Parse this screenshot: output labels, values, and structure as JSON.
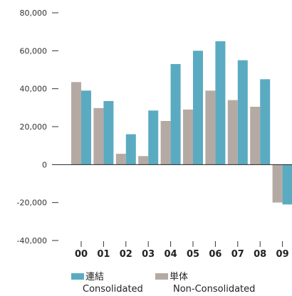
{
  "chart_data": {
    "type": "bar",
    "categories": [
      "00",
      "01",
      "02",
      "03",
      "04",
      "05",
      "06",
      "07",
      "08",
      "09"
    ],
    "series": [
      {
        "name": "単体 Non-Consolidated",
        "color": "#b5aaa3",
        "values": [
          43500,
          29800,
          5700,
          4500,
          23000,
          29000,
          39000,
          34000,
          30500,
          -20000
        ]
      },
      {
        "name": "連結 Consolidated",
        "color": "#5aabc2",
        "values": [
          39000,
          33500,
          16000,
          28500,
          53000,
          60000,
          65000,
          55000,
          45000,
          -21000
        ]
      }
    ],
    "ylim": [
      -40000,
      80000
    ],
    "yticks": [
      80000,
      60000,
      40000,
      20000,
      0,
      -20000,
      -40000
    ],
    "ytick_labels": [
      "80,000",
      "60,000",
      "40,000",
      "20,000",
      "0",
      "-20,000",
      "-40,000"
    ],
    "title": "",
    "xlabel": "",
    "ylabel": "",
    "grid": false,
    "legend": {
      "placement": "bottom",
      "items": [
        {
          "label_line1": "連結",
          "label_line2": "Consolidated",
          "color": "#5aabc2"
        },
        {
          "label_line1": "単体",
          "label_line2": "Non-Consolidated",
          "color": "#b5aaa3"
        }
      ]
    }
  }
}
